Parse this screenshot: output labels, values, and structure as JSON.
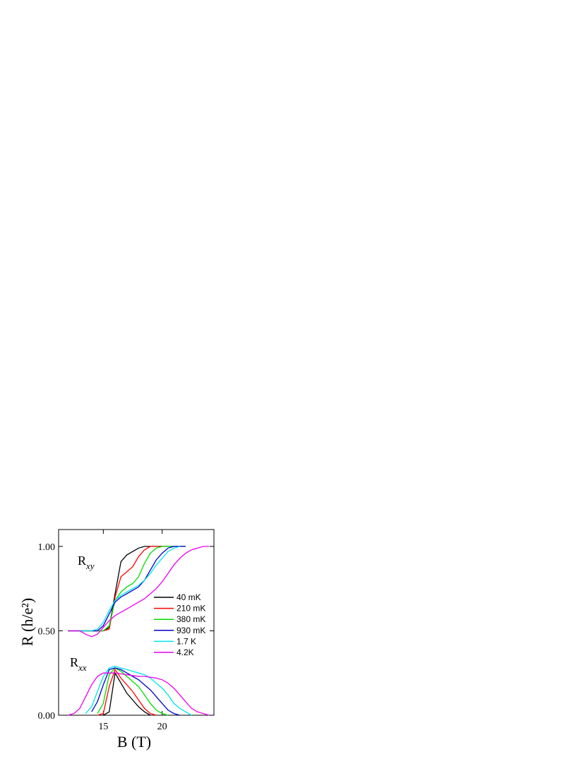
{
  "chart_data": {
    "type": "line",
    "x_label": "B (T)",
    "y_label": "R (h/e²)",
    "annotations": [
      {
        "text": "R",
        "sub": "xy"
      },
      {
        "text": "R",
        "sub": "xx"
      }
    ],
    "xlim": [
      11.2,
      24.4
    ],
    "xticks": [
      15,
      20
    ],
    "ylim": [
      0,
      1.1
    ],
    "yticks": [
      {
        "value": 0,
        "label": "0.00"
      },
      {
        "value": 0.5,
        "label": "0.50"
      },
      {
        "value": 1,
        "label": "1.00"
      }
    ],
    "legend": "center right",
    "series": [
      {
        "name": "40 mK",
        "color": "#000000",
        "x": [
          12,
          12.5,
          13,
          13.5,
          14,
          14.5,
          15,
          15.5,
          16,
          16.5,
          17,
          17.5,
          18,
          18.5,
          19,
          19.5,
          20,
          20.5,
          21,
          21.5,
          22
        ],
        "rxy": [
          0.5,
          0.5,
          0.5,
          0.5,
          0.5,
          0.5,
          0.5,
          0.52,
          0.72,
          0.91,
          0.95,
          0.97,
          0.99,
          1.0,
          1.0,
          1.0,
          1.0,
          1.0,
          1.0,
          1.0,
          1.0
        ],
        "rxx": [
          null,
          null,
          null,
          null,
          null,
          null,
          0,
          0.02,
          0.25,
          0.19,
          0.13,
          0.09,
          0.05,
          0.02,
          0,
          null,
          null,
          null,
          null,
          null,
          null
        ]
      },
      {
        "name": "210 mK",
        "color": "#ff0000",
        "x": [
          12,
          12.5,
          13,
          13.5,
          14,
          14.5,
          15,
          15.5,
          16,
          16.5,
          17,
          17.5,
          18,
          18.5,
          19,
          19.5,
          20,
          20.5
        ],
        "rxy": [
          0.5,
          0.5,
          0.5,
          0.5,
          0.5,
          0.5,
          0.5,
          0.51,
          0.7,
          0.82,
          0.85,
          0.88,
          0.94,
          0.98,
          1.0,
          1.0,
          1.0,
          1.0
        ],
        "rxx": [
          null,
          null,
          null,
          null,
          null,
          0,
          0.01,
          0.17,
          0.27,
          0.22,
          0.18,
          0.14,
          0.09,
          0.04,
          0.01,
          0,
          null,
          null
        ]
      },
      {
        "name": "380 mK",
        "color": "#00dd00",
        "x": [
          12,
          12.5,
          13,
          13.5,
          14,
          14.5,
          15,
          15.5,
          16,
          16.5,
          17,
          17.5,
          18,
          18.5,
          19,
          19.5,
          20,
          20.5,
          21
        ],
        "rxy": [
          0.5,
          0.5,
          0.5,
          0.5,
          0.5,
          0.5,
          0.5,
          0.53,
          0.68,
          0.73,
          0.76,
          0.78,
          0.82,
          0.9,
          0.96,
          0.99,
          1.0,
          1.0,
          1.0
        ],
        "rxx": [
          null,
          null,
          null,
          null,
          null,
          0.01,
          0.07,
          0.24,
          0.28,
          0.26,
          0.23,
          0.2,
          0.17,
          0.12,
          0.07,
          0.03,
          0.01,
          0,
          null
        ]
      },
      {
        "name": "930 mK",
        "color": "#0000cc",
        "x": [
          12,
          12.5,
          13,
          13.5,
          14,
          14.5,
          15,
          15.5,
          16,
          16.5,
          17,
          17.5,
          18,
          18.5,
          19,
          19.5,
          20,
          20.5,
          21,
          21.5,
          22
        ],
        "rxy": [
          0.5,
          0.5,
          0.5,
          0.5,
          0.5,
          0.5,
          0.53,
          0.6,
          0.67,
          0.7,
          0.72,
          0.74,
          0.76,
          0.8,
          0.86,
          0.92,
          0.96,
          0.99,
          1.0,
          1.0,
          1.0
        ],
        "rxx": [
          null,
          null,
          null,
          null,
          0.02,
          0.08,
          0.18,
          0.27,
          0.28,
          0.27,
          0.25,
          0.23,
          0.21,
          0.18,
          0.15,
          0.11,
          0.07,
          0.03,
          0.01,
          0,
          null
        ]
      },
      {
        "name": "1.7 K",
        "color": "#00e5ee",
        "x": [
          12,
          12.5,
          13,
          13.5,
          14,
          14.5,
          15,
          15.5,
          16,
          16.5,
          17,
          17.5,
          18,
          18.5,
          19,
          19.5,
          20,
          20.5,
          21,
          21.5,
          22,
          22.5
        ],
        "rxy": [
          0.5,
          0.5,
          0.5,
          0.5,
          0.5,
          0.51,
          0.55,
          0.62,
          0.68,
          0.71,
          0.73,
          0.75,
          0.77,
          0.8,
          0.84,
          0.89,
          0.93,
          0.97,
          0.99,
          1.0,
          null,
          null
        ],
        "rxx": [
          null,
          null,
          null,
          0.01,
          0.05,
          0.14,
          0.23,
          0.28,
          0.29,
          0.28,
          0.27,
          0.26,
          0.25,
          0.24,
          0.22,
          0.19,
          0.16,
          0.12,
          0.07,
          0.04,
          0.02,
          0
        ]
      },
      {
        "name": "4.2K",
        "color": "#ee00ee",
        "x": [
          12,
          12.5,
          13,
          13.5,
          14,
          14.5,
          15,
          15.5,
          16,
          16.5,
          17,
          17.5,
          18,
          18.5,
          19,
          19.5,
          20,
          20.5,
          21,
          21.5,
          22,
          22.5,
          23,
          23.5,
          24
        ],
        "rxy": [
          0.5,
          0.5,
          0.5,
          0.48,
          0.465,
          0.48,
          0.52,
          0.56,
          0.59,
          0.61,
          0.63,
          0.65,
          0.67,
          0.69,
          0.72,
          0.75,
          0.79,
          0.84,
          0.89,
          0.93,
          0.96,
          0.98,
          0.99,
          1.0,
          1.0
        ],
        "rxx": [
          0,
          0.01,
          0.04,
          0.11,
          0.18,
          0.23,
          0.25,
          0.25,
          0.25,
          0.245,
          0.24,
          0.235,
          0.23,
          0.23,
          0.225,
          0.22,
          0.21,
          0.19,
          0.16,
          0.12,
          0.08,
          0.04,
          0.02,
          0.01,
          0
        ]
      }
    ]
  }
}
